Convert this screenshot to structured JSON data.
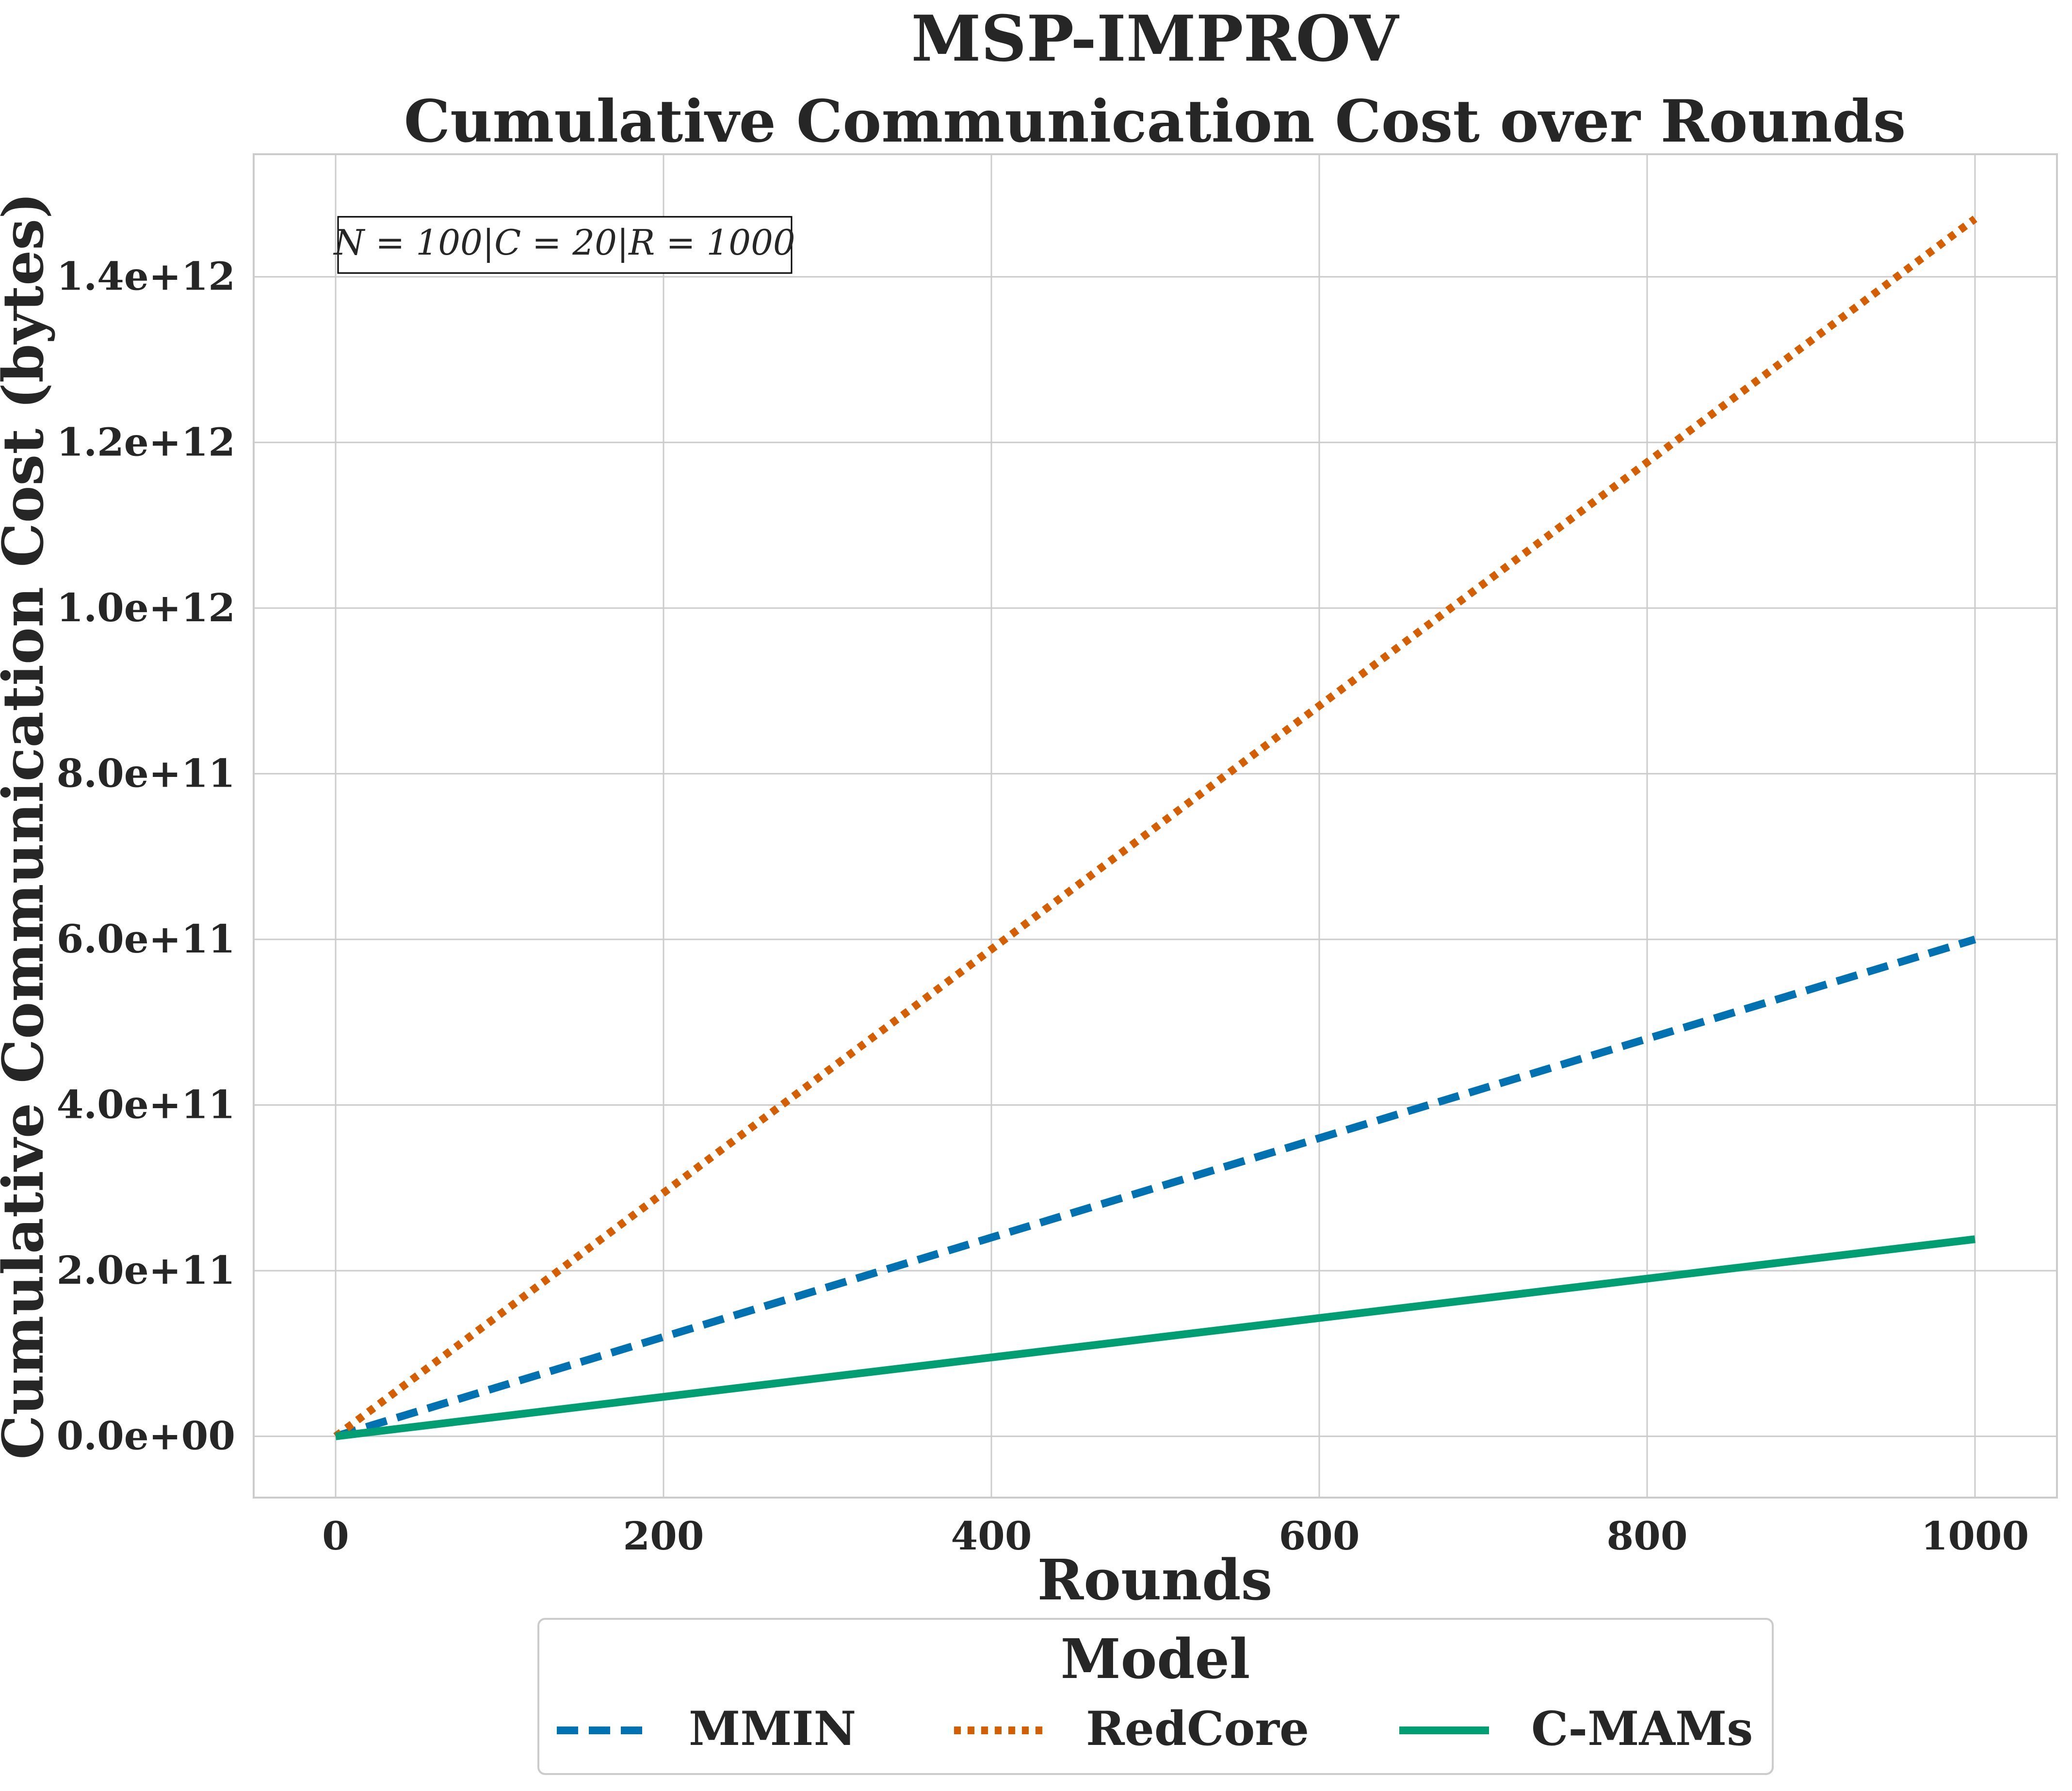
{
  "chart_data": {
    "type": "line",
    "suptitle": "MSP-IMPROV",
    "title": "Cumulative Communication Cost over Rounds",
    "xlabel": "Rounds",
    "ylabel": "Cumulative Communication Cost (bytes)",
    "annotation": "N = 100|C = 20|R = 1000",
    "xlim": [
      -50,
      1050
    ],
    "ylim": [
      -74000000000.0,
      1548000000000.0
    ],
    "x_ticks": [
      0,
      200,
      400,
      600,
      800,
      1000
    ],
    "x_tick_labels": [
      "0",
      "200",
      "400",
      "600",
      "800",
      "1000"
    ],
    "y_ticks": [
      0,
      200000000000.0,
      400000000000.0,
      600000000000.0,
      800000000000.0,
      1000000000000.0,
      1200000000000.0,
      1400000000000.0
    ],
    "y_tick_labels": [
      "0.0e+00",
      "2.0e+11",
      "4.0e+11",
      "6.0e+11",
      "8.0e+11",
      "1.0e+12",
      "1.2e+12",
      "1.4e+12"
    ],
    "grid": true,
    "legend": {
      "title": "Model",
      "placement": "bottom-center"
    },
    "series": [
      {
        "name": "MMIN",
        "color": "#0072b2",
        "style": "dashed",
        "x": [
          0,
          1000
        ],
        "y": [
          0,
          600000000000.0
        ]
      },
      {
        "name": "RedCore",
        "color": "#d55e00",
        "style": "dotted",
        "x": [
          0,
          1000
        ],
        "y": [
          0,
          1470000000000.0
        ]
      },
      {
        "name": "C-MAMs",
        "color": "#009e73",
        "style": "solid",
        "x": [
          0,
          1000
        ],
        "y": [
          0,
          238000000000.0
        ]
      }
    ]
  }
}
